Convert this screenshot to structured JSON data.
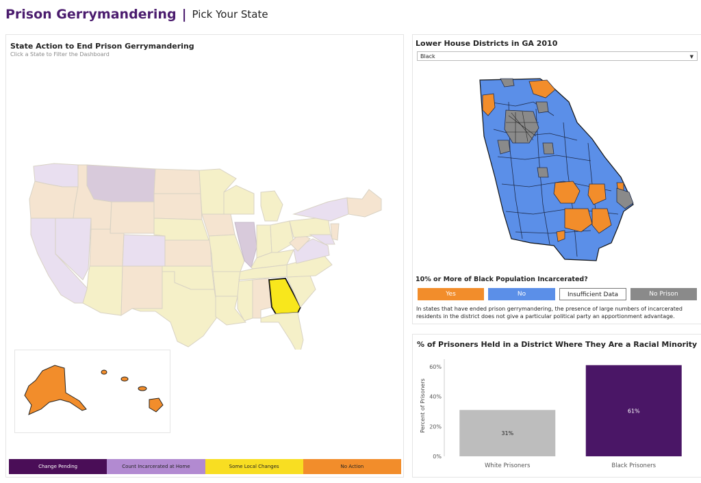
{
  "header": {
    "title": "Prison Gerrymandering",
    "separator": "|",
    "subtitle": "Pick Your State"
  },
  "map_panel": {
    "title": "State Action to End Prison Gerrymandering",
    "subtitle": "Click a State to Filter the Dashboard",
    "selected_state": "Georgia",
    "legend": [
      {
        "label": "Change Pending",
        "color": "#4a0d57",
        "text_color": "#ffffff"
      },
      {
        "label": "Count Incarcerated at Home",
        "color": "#b28ad1",
        "text_color": "#222222"
      },
      {
        "label": "Some Local Changes",
        "color": "#f8de22",
        "text_color": "#222222"
      },
      {
        "label": "No Action",
        "color": "#f28d2b",
        "text_color": "#222222"
      }
    ]
  },
  "district_panel": {
    "title": "Lower House Districts in GA 2010",
    "dropdown_value": "Black",
    "question": "10% or More of Black Population Incarcerated?",
    "legend": [
      {
        "label": "Yes",
        "color": "#f28d2b",
        "text_color": "#ffffff"
      },
      {
        "label": "No",
        "color": "#5b8fe8",
        "text_color": "#ffffff"
      },
      {
        "label": "Insufficient Data",
        "color": "#ffffff",
        "text_color": "#222222"
      },
      {
        "label": "No Prison",
        "color": "#8a8a8a",
        "text_color": "#ffffff"
      }
    ],
    "note": "In states that have ended prison gerrymandering, the presence of large numbers of incarcerated residents in the district does not give a particular political party an apportionment advantage."
  },
  "chart_panel": {
    "title": "% of Prisoners Held in a District Where They Are a Racial Minority"
  },
  "chart_data": {
    "type": "bar",
    "categories": [
      "White Prisoners",
      "Black Prisoners"
    ],
    "values": [
      31,
      61
    ],
    "value_labels": [
      "31%",
      "61%"
    ],
    "bar_colors": [
      "#bdbdbd",
      "#4a1666"
    ],
    "ylabel": "Percent of Prisoners",
    "yticks": [
      "0%",
      "20%",
      "40%",
      "60%"
    ],
    "ylim": [
      0,
      65
    ],
    "grid": false
  }
}
